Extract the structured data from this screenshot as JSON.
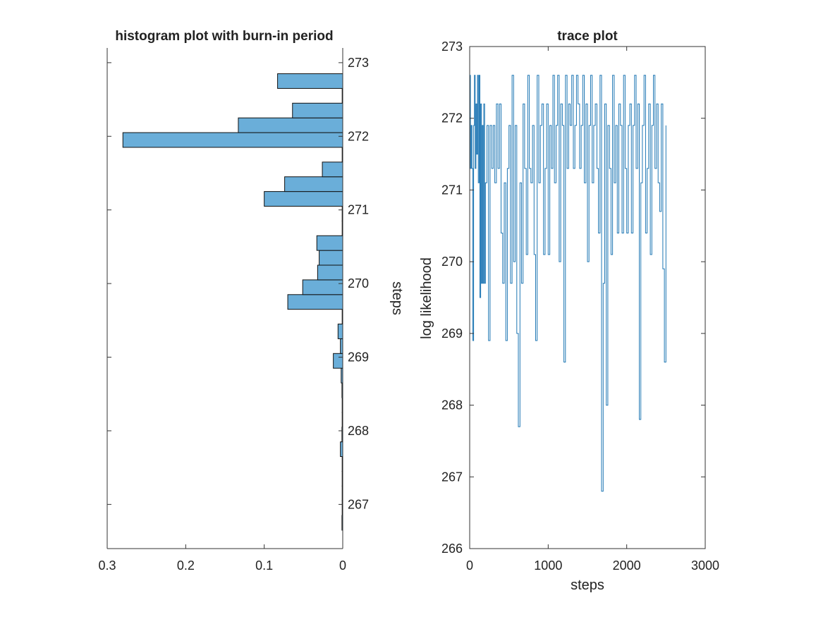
{
  "chart_data": [
    {
      "type": "bar",
      "orientation": "horizontal",
      "title": "histogram plot with burn-in period",
      "ylabel": "steps",
      "y_axis_side": "right",
      "x_reversed": true,
      "xlim": [
        0,
        0.3
      ],
      "ylim": [
        266.4,
        273.2
      ],
      "x_ticks": [
        0.3,
        0.2,
        0.1,
        0
      ],
      "x_tick_labels": [
        "0.3",
        "0.2",
        "0.1",
        "0"
      ],
      "y_ticks": [
        267,
        268,
        269,
        270,
        271,
        272,
        273
      ],
      "y_tick_labels": [
        "267",
        "268",
        "269",
        "270",
        "271",
        "272",
        "273"
      ],
      "bin_width": 0.2,
      "bins": [
        {
          "center": 266.75,
          "value": 0.001
        },
        {
          "center": 266.95,
          "value": 0
        },
        {
          "center": 267.15,
          "value": 0
        },
        {
          "center": 267.35,
          "value": 0
        },
        {
          "center": 267.55,
          "value": 0
        },
        {
          "center": 267.75,
          "value": 0.003
        },
        {
          "center": 267.95,
          "value": 0.001
        },
        {
          "center": 268.15,
          "value": 0
        },
        {
          "center": 268.35,
          "value": 0
        },
        {
          "center": 268.55,
          "value": 0.001
        },
        {
          "center": 268.75,
          "value": 0.002
        },
        {
          "center": 268.95,
          "value": 0.012
        },
        {
          "center": 269.15,
          "value": 0.003
        },
        {
          "center": 269.35,
          "value": 0.006
        },
        {
          "center": 269.55,
          "value": 0
        },
        {
          "center": 269.75,
          "value": 0.07
        },
        {
          "center": 269.95,
          "value": 0.051
        },
        {
          "center": 270.15,
          "value": 0.032
        },
        {
          "center": 270.35,
          "value": 0.03
        },
        {
          "center": 270.55,
          "value": 0.033
        },
        {
          "center": 270.75,
          "value": 0
        },
        {
          "center": 270.95,
          "value": 0
        },
        {
          "center": 271.15,
          "value": 0.1
        },
        {
          "center": 271.35,
          "value": 0.074
        },
        {
          "center": 271.55,
          "value": 0.026
        },
        {
          "center": 271.75,
          "value": 0
        },
        {
          "center": 271.95,
          "value": 0.28
        },
        {
          "center": 272.15,
          "value": 0.133
        },
        {
          "center": 272.35,
          "value": 0.064
        },
        {
          "center": 272.55,
          "value": 0
        },
        {
          "center": 272.75,
          "value": 0.083
        }
      ],
      "bar_color": "#6aaed9",
      "bar_edge_color": "#111111"
    },
    {
      "type": "line",
      "title": "trace plot",
      "xlabel": "steps",
      "ylabel": "log likelihood",
      "xlim": [
        0,
        3000
      ],
      "ylim": [
        266,
        273
      ],
      "x_ticks": [
        0,
        1000,
        2000,
        3000
      ],
      "x_tick_labels": [
        "0",
        "1000",
        "2000",
        "3000"
      ],
      "y_ticks": [
        266,
        267,
        268,
        269,
        270,
        271,
        272,
        273
      ],
      "y_tick_labels": [
        "266",
        "267",
        "268",
        "269",
        "270",
        "271",
        "272",
        "273"
      ],
      "line_color": "#1f77b4",
      "series": [
        {
          "x": [
            0,
            10,
            20,
            30,
            40,
            50,
            60,
            70,
            80,
            90,
            100,
            110,
            120,
            130,
            140,
            150,
            160,
            170,
            180,
            190,
            200,
            220,
            240,
            260,
            280,
            300,
            320,
            340,
            360,
            380,
            400,
            420,
            440,
            460,
            480,
            500,
            520,
            540,
            560,
            580,
            600,
            620,
            640,
            660,
            680,
            700,
            720,
            740,
            760,
            780,
            800,
            820,
            840,
            860,
            880,
            900,
            920,
            940,
            960,
            980,
            1000,
            1020,
            1040,
            1060,
            1080,
            1100,
            1120,
            1140,
            1160,
            1180,
            1200,
            1220,
            1240,
            1260,
            1280,
            1300,
            1320,
            1340,
            1360,
            1380,
            1400,
            1420,
            1440,
            1460,
            1480,
            1500,
            1520,
            1540,
            1560,
            1580,
            1600,
            1620,
            1640,
            1660,
            1680,
            1700,
            1720,
            1740,
            1760,
            1780,
            1800,
            1820,
            1840,
            1860,
            1880,
            1900,
            1920,
            1940,
            1960,
            1980,
            2000,
            2020,
            2040,
            2060,
            2080,
            2100,
            2120,
            2140,
            2160,
            2180,
            2200,
            2220,
            2240,
            2260,
            2280,
            2300,
            2320,
            2340,
            2360,
            2380,
            2400,
            2420,
            2440,
            2460,
            2480,
            2500
          ],
          "y": [
            272.6,
            271.3,
            271.9,
            271.3,
            268.9,
            271.9,
            272.6,
            271.3,
            272.2,
            271.5,
            272.6,
            271.1,
            272.6,
            269.5,
            272.2,
            269.7,
            271.9,
            269.7,
            272.2,
            269.7,
            271.1,
            271.9,
            268.9,
            271.9,
            271.3,
            271.9,
            271.1,
            272.2,
            271.3,
            272.2,
            270.4,
            269.7,
            271.1,
            268.9,
            271.3,
            271.9,
            269.7,
            272.6,
            270.0,
            271.9,
            269.0,
            267.7,
            271.1,
            269.7,
            272.2,
            271.3,
            270.1,
            272.6,
            271.3,
            271.1,
            271.9,
            270.1,
            268.9,
            272.6,
            271.1,
            271.9,
            272.2,
            270.1,
            271.3,
            272.2,
            270.1,
            271.9,
            271.3,
            272.6,
            271.1,
            271.9,
            272.6,
            270.0,
            272.2,
            271.9,
            268.6,
            272.6,
            271.3,
            272.2,
            271.9,
            272.6,
            271.3,
            271.9,
            272.6,
            272.2,
            271.3,
            271.9,
            272.6,
            271.1,
            272.2,
            270.0,
            271.9,
            272.6,
            271.1,
            271.9,
            272.2,
            271.3,
            270.4,
            272.6,
            266.8,
            269.7,
            272.2,
            268.0,
            271.9,
            271.3,
            270.1,
            272.6,
            271.1,
            271.9,
            270.4,
            272.2,
            271.9,
            270.4,
            272.6,
            271.3,
            270.4,
            271.9,
            272.2,
            270.4,
            271.9,
            272.6,
            271.3,
            272.2,
            267.8,
            271.1,
            271.9,
            272.6,
            270.4,
            271.3,
            272.2,
            270.1,
            271.9,
            272.6,
            271.3,
            272.2,
            271.1,
            270.7,
            272.2,
            269.9,
            268.6,
            271.9
          ]
        }
      ]
    }
  ]
}
